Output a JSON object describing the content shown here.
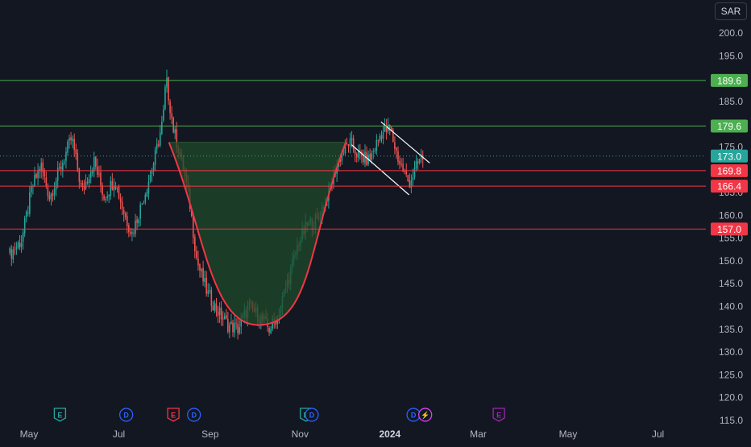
{
  "currency": "SAR",
  "colors": {
    "background": "#131722",
    "axis_text": "#b2b5be",
    "up": "#26a69a",
    "down": "#ef5350",
    "resistance": "#4caf50",
    "support": "#f23645",
    "cup_fill": "#1f4a2a",
    "dividend_badge": "#2962ff",
    "earnings_badge": "#26a69a",
    "earnings_missed_badge": "#f23645",
    "future_earnings_badge": "#9c27b0",
    "split_badge": "#e040fb"
  },
  "chart_data": {
    "type": "candlestick",
    "y_ticks": [
      "200.0",
      "195.0",
      "190.0",
      "185.0",
      "180.0",
      "175.0",
      "170.0",
      "165.0",
      "160.0",
      "155.0",
      "150.0",
      "145.0",
      "140.0",
      "135.0",
      "130.0",
      "125.0",
      "120.0",
      "115.0"
    ],
    "x_ticks": [
      {
        "label": "May",
        "date": "2023-05-01"
      },
      {
        "label": "Jul",
        "date": "2023-07-01"
      },
      {
        "label": "Sep",
        "date": "2023-09-01"
      },
      {
        "label": "Nov",
        "date": "2023-11-01"
      },
      {
        "label": "2024",
        "date": "2024-01-01",
        "bold": true
      },
      {
        "label": "Mar",
        "date": "2024-03-01"
      },
      {
        "label": "May",
        "date": "2024-05-01"
      },
      {
        "label": "Jul",
        "date": "2024-07-01"
      }
    ],
    "price_levels": [
      {
        "value": 189.6,
        "label": "189.6",
        "kind": "resistance"
      },
      {
        "value": 179.6,
        "label": "179.6",
        "kind": "resistance"
      },
      {
        "value": 173.0,
        "label": "173.0",
        "kind": "last_price"
      },
      {
        "value": 169.8,
        "label": "169.8",
        "kind": "support"
      },
      {
        "value": 166.4,
        "label": "166.4",
        "kind": "support"
      },
      {
        "value": 157.0,
        "label": "157.0",
        "kind": "support"
      }
    ],
    "price_path": [
      [
        "2023-04-18",
        151.5
      ],
      [
        "2023-04-26",
        154.5
      ],
      [
        "2023-05-03",
        166
      ],
      [
        "2023-05-09",
        171
      ],
      [
        "2023-05-15",
        164
      ],
      [
        "2023-05-23",
        171
      ],
      [
        "2023-05-30",
        177
      ],
      [
        "2023-06-06",
        165
      ],
      [
        "2023-06-14",
        172
      ],
      [
        "2023-06-21",
        164
      ],
      [
        "2023-06-28",
        168
      ],
      [
        "2023-07-05",
        160
      ],
      [
        "2023-07-10",
        156
      ],
      [
        "2023-07-17",
        163
      ],
      [
        "2023-07-25",
        172
      ],
      [
        "2023-07-31",
        181
      ],
      [
        "2023-08-02",
        190
      ],
      [
        "2023-08-07",
        179
      ],
      [
        "2023-08-14",
        170
      ],
      [
        "2023-08-18",
        163
      ],
      [
        "2023-08-23",
        150
      ],
      [
        "2023-08-30",
        143
      ],
      [
        "2023-09-06",
        139
      ],
      [
        "2023-09-13",
        136
      ],
      [
        "2023-09-20",
        135
      ],
      [
        "2023-09-27",
        140
      ],
      [
        "2023-10-04",
        138
      ],
      [
        "2023-10-11",
        135
      ],
      [
        "2023-10-17",
        138
      ],
      [
        "2023-10-24",
        146
      ],
      [
        "2023-10-31",
        154
      ],
      [
        "2023-11-06",
        158
      ],
      [
        "2023-11-13",
        159
      ],
      [
        "2023-11-20",
        165
      ],
      [
        "2023-11-27",
        172
      ],
      [
        "2023-12-04",
        176
      ],
      [
        "2023-12-11",
        173
      ],
      [
        "2023-12-18",
        172
      ],
      [
        "2023-12-26",
        178
      ],
      [
        "2024-01-01",
        179
      ],
      [
        "2024-01-07",
        172
      ],
      [
        "2024-01-14",
        167
      ],
      [
        "2024-01-21",
        172
      ],
      [
        "2024-01-24",
        173
      ]
    ],
    "cup": {
      "left": {
        "date": "2023-08-04",
        "price": 176
      },
      "bottom": {
        "date": "2023-10-07",
        "price": 136
      },
      "right": {
        "date": "2023-12-02",
        "price": 176
      }
    },
    "flag_channel": {
      "upper": [
        {
          "date": "2023-12-26",
          "price": 180.5
        },
        {
          "date": "2024-01-28",
          "price": 171.5
        }
      ],
      "lower": [
        {
          "date": "2023-12-06",
          "price": 175.5
        },
        {
          "date": "2024-01-14",
          "price": 164.5
        }
      ]
    },
    "events": [
      {
        "letter": "E",
        "date": "2023-05-22",
        "kind": "earnings"
      },
      {
        "letter": "D",
        "date": "2023-07-06",
        "kind": "dividend"
      },
      {
        "letter": "E",
        "date": "2023-08-07",
        "kind": "earnings_missed"
      },
      {
        "letter": "D",
        "date": "2023-08-21",
        "kind": "dividend"
      },
      {
        "letter": "E",
        "date": "2023-11-05",
        "kind": "earnings"
      },
      {
        "letter": "D",
        "date": "2023-11-09",
        "kind": "dividend"
      },
      {
        "letter": "D",
        "date": "2024-01-17",
        "kind": "dividend"
      },
      {
        "letter": "⚡",
        "date": "2024-01-25",
        "kind": "split"
      },
      {
        "letter": "E",
        "date": "2024-03-15",
        "kind": "future_earnings"
      }
    ]
  }
}
